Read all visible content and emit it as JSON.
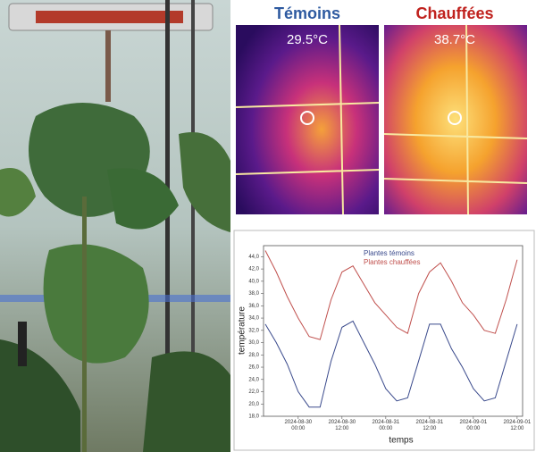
{
  "panels": {
    "left_title": "Témoins",
    "right_title": "Chauffées",
    "left_temp": "29.5°C",
    "right_temp": "38.7°C"
  },
  "chart_data": {
    "type": "line",
    "xlabel": "temps",
    "ylabel": "température",
    "x": [
      "2024-08-29 15:00",
      "2024-08-29 18:00",
      "2024-08-29 21:00",
      "2024-08-30 00:00",
      "2024-08-30 03:00",
      "2024-08-30 06:00",
      "2024-08-30 09:00",
      "2024-08-30 12:00",
      "2024-08-30 15:00",
      "2024-08-30 18:00",
      "2024-08-30 21:00",
      "2024-08-31 00:00",
      "2024-08-31 03:00",
      "2024-08-31 06:00",
      "2024-08-31 09:00",
      "2024-08-31 12:00",
      "2024-08-31 15:00",
      "2024-08-31 18:00",
      "2024-08-31 21:00",
      "2024-09-01 00:00",
      "2024-09-01 03:00",
      "2024-09-01 06:00",
      "2024-09-01 09:00",
      "2024-09-01 12:00"
    ],
    "series": [
      {
        "name": "Plantes témoins",
        "color": "#3a4a8c",
        "values": [
          33,
          30,
          26.5,
          22,
          19.5,
          19.5,
          27,
          32.5,
          33.5,
          30,
          26.5,
          22.5,
          20.5,
          21,
          27,
          33,
          33,
          29,
          26,
          22.5,
          20.5,
          21,
          27,
          33
        ]
      },
      {
        "name": "Plantes chauffées",
        "color": "#c0504d",
        "values": [
          45,
          41.5,
          37.5,
          34,
          31,
          30.5,
          37,
          41.5,
          42.5,
          39.5,
          36.5,
          34.5,
          32.5,
          31.5,
          38,
          41.5,
          43,
          40,
          36.5,
          34.5,
          32,
          31.5,
          37,
          43.5
        ]
      }
    ],
    "xlim": [
      "2024-08-29 14:30",
      "2024-09-01 13:30"
    ],
    "xticks": [
      "2024-08-30 00:00",
      "2024-08-30 12:00",
      "2024-08-31 00:00",
      "2024-08-31 12:00",
      "2024-09-01 00:00",
      "2024-09-01 12:00"
    ],
    "ylim": [
      18,
      45.8
    ],
    "yticks": [
      {
        "value": 18,
        "label": "18,0"
      },
      {
        "value": 20,
        "label": "20,0"
      },
      {
        "value": 22,
        "label": "22,0"
      },
      {
        "value": 24,
        "label": "24,0"
      },
      {
        "value": 26,
        "label": "26,0"
      },
      {
        "value": 28,
        "label": "28,0"
      },
      {
        "value": 30,
        "label": "30,0"
      },
      {
        "value": 32,
        "label": "32,0"
      },
      {
        "value": 34,
        "label": "34,0"
      },
      {
        "value": 36,
        "label": "36,0"
      },
      {
        "value": 38,
        "label": "38,0"
      },
      {
        "value": 40,
        "label": "40,0"
      },
      {
        "value": 42,
        "label": "42,0"
      },
      {
        "value": 44,
        "label": "44,0"
      }
    ],
    "grid": false,
    "legend": "upper-left"
  }
}
